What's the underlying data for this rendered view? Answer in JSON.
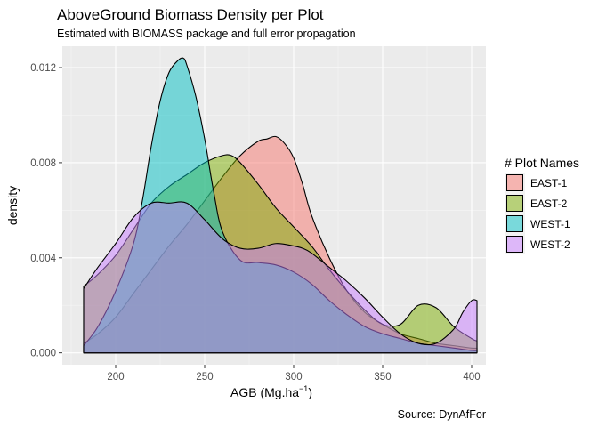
{
  "chart_data": {
    "type": "area",
    "title": "AboveGround Biomass Density per Plot",
    "subtitle": "Estimated with BIOMASS package and full error propagation",
    "xlabel": "AGB (Mg.ha",
    "xlabel_sup": "−1",
    "xlabel_end": ")",
    "ylabel": "density",
    "caption": "Source: DynAfFor",
    "xlim": [
      170,
      408
    ],
    "ylim": [
      -0.0005,
      0.0129
    ],
    "x_ticks": [
      200,
      250,
      300,
      350,
      400
    ],
    "x_tick_labels": [
      "200",
      "250",
      "300",
      "350",
      "400"
    ],
    "y_ticks": [
      0,
      0.004,
      0.008,
      0.012
    ],
    "y_tick_labels": [
      "0.000",
      "0.004",
      "0.008",
      "0.012"
    ],
    "grid": true,
    "legend_position": "right",
    "legend_title": "# Plot Names",
    "series": [
      {
        "name": "EAST-1",
        "color": "#F8766D",
        "x": [
          182,
          190,
          200,
          210,
          220,
          230,
          240,
          250,
          260,
          270,
          280,
          285,
          290,
          295,
          300,
          305,
          310,
          320,
          330,
          340,
          350,
          360,
          370,
          380,
          390,
          400,
          403
        ],
        "y": [
          0.0004,
          0.0008,
          0.0015,
          0.0025,
          0.0035,
          0.0045,
          0.0054,
          0.0064,
          0.0074,
          0.0083,
          0.0089,
          0.009,
          0.0091,
          0.0088,
          0.0082,
          0.0071,
          0.0058,
          0.004,
          0.0026,
          0.0017,
          0.0012,
          0.0008,
          0.0006,
          0.0004,
          0.0003,
          0.0002,
          0.0002
        ]
      },
      {
        "name": "EAST-2",
        "color": "#7CAE00",
        "x": [
          182,
          190,
          200,
          210,
          220,
          230,
          240,
          250,
          260,
          265,
          270,
          280,
          290,
          300,
          310,
          320,
          330,
          340,
          350,
          360,
          370,
          380,
          390,
          400,
          403
        ],
        "y": [
          0.0028,
          0.0033,
          0.0041,
          0.0052,
          0.0063,
          0.007,
          0.0075,
          0.008,
          0.0083,
          0.0083,
          0.008,
          0.0071,
          0.0061,
          0.0053,
          0.0045,
          0.0035,
          0.0026,
          0.0018,
          0.0012,
          0.0012,
          0.002,
          0.0019,
          0.0011,
          0.0006,
          0.0005
        ]
      },
      {
        "name": "WEST-1",
        "color": "#00BFC4",
        "x": [
          182,
          190,
          200,
          210,
          215,
          220,
          225,
          230,
          235,
          238,
          240,
          245,
          250,
          255,
          260,
          270,
          280,
          290,
          300,
          310,
          320,
          330,
          340,
          350,
          360,
          370,
          380,
          390,
          400,
          403
        ],
        "y": [
          0.0003,
          0.0011,
          0.0026,
          0.0046,
          0.0064,
          0.0087,
          0.0106,
          0.0118,
          0.0123,
          0.0124,
          0.0121,
          0.0108,
          0.009,
          0.0068,
          0.0051,
          0.0039,
          0.0038,
          0.0037,
          0.0034,
          0.0029,
          0.0022,
          0.0016,
          0.0011,
          0.0008,
          0.0006,
          0.0004,
          0.0003,
          0.0002,
          0.0001,
          0.0001
        ]
      },
      {
        "name": "WEST-2",
        "color": "#C77CFF",
        "x": [
          182,
          190,
          200,
          210,
          220,
          230,
          240,
          250,
          260,
          270,
          280,
          290,
          300,
          305,
          310,
          320,
          330,
          340,
          350,
          360,
          370,
          380,
          390,
          395,
          400,
          403
        ],
        "y": [
          0.0027,
          0.0036,
          0.0046,
          0.0057,
          0.0063,
          0.0063,
          0.0063,
          0.0056,
          0.0048,
          0.0044,
          0.0044,
          0.0046,
          0.0045,
          0.0044,
          0.0042,
          0.0036,
          0.003,
          0.0023,
          0.0015,
          0.0008,
          0.0004,
          0.0004,
          0.001,
          0.0017,
          0.0022,
          0.0022
        ]
      }
    ]
  }
}
